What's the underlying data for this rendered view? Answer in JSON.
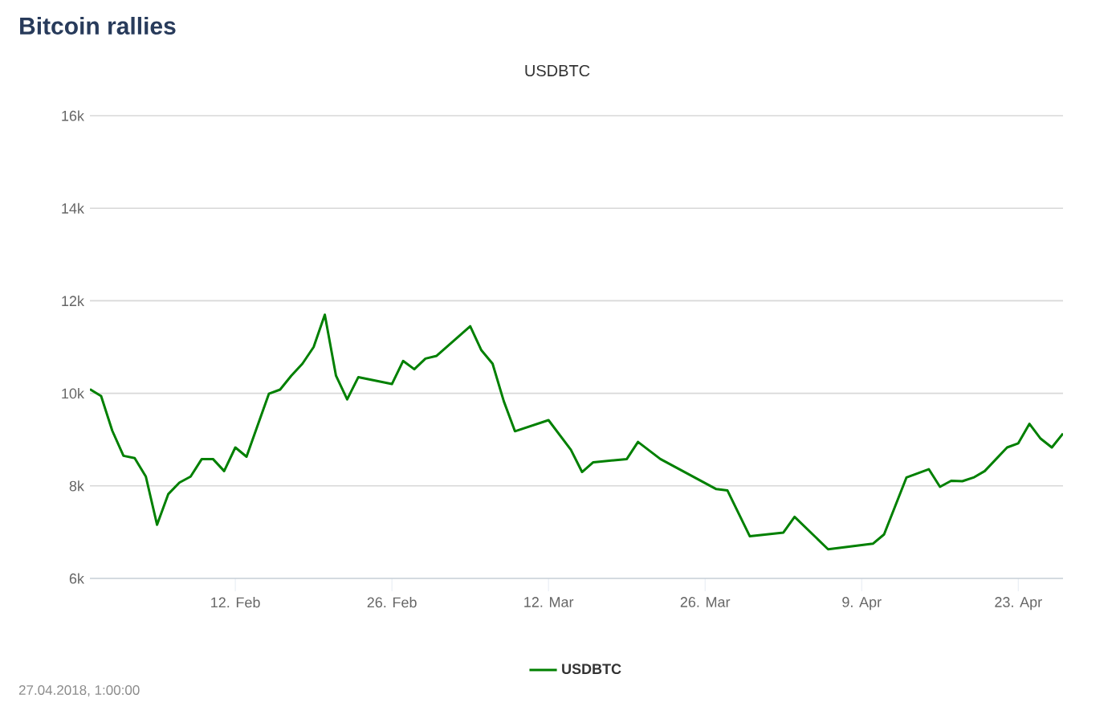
{
  "chart_data": {
    "type": "line",
    "title": "Bitcoin rallies",
    "subtitle": "USDBTC",
    "x": [
      "2018-01-30",
      "2018-01-31",
      "2018-02-01",
      "2018-02-02",
      "2018-02-03",
      "2018-02-04",
      "2018-02-05",
      "2018-02-06",
      "2018-02-07",
      "2018-02-08",
      "2018-02-09",
      "2018-02-10",
      "2018-02-11",
      "2018-02-12",
      "2018-02-13",
      "2018-02-15",
      "2018-02-16",
      "2018-02-17",
      "2018-02-18",
      "2018-02-19",
      "2018-02-20",
      "2018-02-21",
      "2018-02-22",
      "2018-02-23",
      "2018-02-26",
      "2018-02-27",
      "2018-02-28",
      "2018-03-01",
      "2018-03-02",
      "2018-03-05",
      "2018-03-06",
      "2018-03-07",
      "2018-03-08",
      "2018-03-09",
      "2018-03-12",
      "2018-03-14",
      "2018-03-15",
      "2018-03-16",
      "2018-03-19",
      "2018-03-20",
      "2018-03-22",
      "2018-03-27",
      "2018-03-28",
      "2018-03-30",
      "2018-04-02",
      "2018-04-03",
      "2018-04-06",
      "2018-04-10",
      "2018-04-11",
      "2018-04-13",
      "2018-04-15",
      "2018-04-16",
      "2018-04-17",
      "2018-04-18",
      "2018-04-19",
      "2018-04-20",
      "2018-04-22",
      "2018-04-23",
      "2018-04-24",
      "2018-04-25",
      "2018-04-26",
      "2018-04-27"
    ],
    "series": [
      {
        "name": "USDBTC",
        "color": "#008000",
        "values": [
          10090,
          9940,
          9190,
          8650,
          8600,
          8200,
          7160,
          7820,
          8070,
          8200,
          8580,
          8580,
          8320,
          8830,
          8630,
          9990,
          10080,
          10380,
          10640,
          11000,
          11700,
          10380,
          9870,
          10350,
          10200,
          10700,
          10520,
          10750,
          10810,
          11450,
          10930,
          10640,
          9830,
          9180,
          9420,
          8780,
          8300,
          8510,
          8580,
          8950,
          8580,
          7930,
          7900,
          6910,
          6990,
          7330,
          6630,
          6750,
          6950,
          8180,
          8360,
          7980,
          8110,
          8100,
          8180,
          8320,
          8830,
          8920,
          9340,
          9020,
          8830,
          9130
        ]
      }
    ],
    "xlim": [
      "2018-01-30",
      "2018-04-27"
    ],
    "xticks": [
      {
        "value": "2018-02-12",
        "label": "12. Feb"
      },
      {
        "value": "2018-02-26",
        "label": "26. Feb"
      },
      {
        "value": "2018-03-12",
        "label": "12. Mar"
      },
      {
        "value": "2018-03-26",
        "label": "26. Mar"
      },
      {
        "value": "2018-04-09",
        "label": "9. Apr"
      },
      {
        "value": "2018-04-23",
        "label": "23. Apr"
      }
    ],
    "ylim": [
      6000,
      16000
    ],
    "yticks": [
      {
        "value": 6000,
        "label": "6k"
      },
      {
        "value": 8000,
        "label": "8k"
      },
      {
        "value": 10000,
        "label": "10k"
      },
      {
        "value": 12000,
        "label": "12k"
      },
      {
        "value": 14000,
        "label": "14k"
      },
      {
        "value": 16000,
        "label": "16k"
      }
    ],
    "grid": "y",
    "legend": "bottom",
    "marker": "none",
    "line_style": "solid",
    "annotations": [
      "27.04.2018, 1:00:00"
    ]
  }
}
